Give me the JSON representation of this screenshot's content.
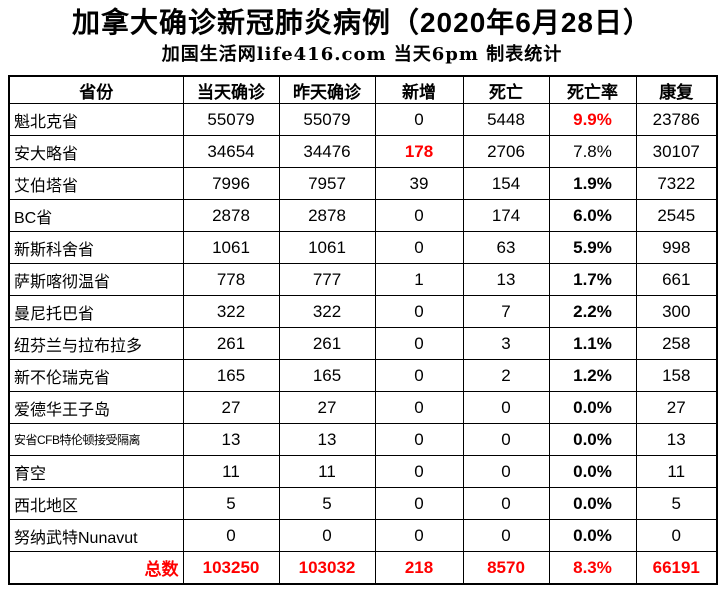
{
  "page": {
    "title": "加拿大确诊新冠肺炎病例（2020年6月28日）",
    "subtitle": "加国生活网life416.com 当天6pm 制表统计"
  },
  "colors": {
    "highlight_red": "#ff0000",
    "text": "#000000",
    "border": "#000000",
    "background": "#ffffff"
  },
  "table": {
    "columns": [
      "省份",
      "当天确诊",
      "昨天确诊",
      "新增",
      "死亡",
      "死亡率",
      "康复"
    ],
    "rows": [
      {
        "province": "魁北克省",
        "today": "55079",
        "yesterday": "55079",
        "added": "0",
        "deaths": "5448",
        "rate": "9.9%",
        "recovered": "23786",
        "rate_style": "red",
        "added_style": "plain",
        "province_small": false
      },
      {
        "province": "安大略省",
        "today": "34654",
        "yesterday": "34476",
        "added": "178",
        "deaths": "2706",
        "rate": "7.8%",
        "recovered": "30107",
        "rate_style": "plain",
        "added_style": "red",
        "province_small": false
      },
      {
        "province": "艾伯塔省",
        "today": "7996",
        "yesterday": "7957",
        "added": "39",
        "deaths": "154",
        "rate": "1.9%",
        "recovered": "7322",
        "rate_style": "bold",
        "added_style": "plain",
        "province_small": false
      },
      {
        "province": "BC省",
        "today": "2878",
        "yesterday": "2878",
        "added": "0",
        "deaths": "174",
        "rate": "6.0%",
        "recovered": "2545",
        "rate_style": "bold",
        "added_style": "plain",
        "province_small": false
      },
      {
        "province": "新斯科舍省",
        "today": "1061",
        "yesterday": "1061",
        "added": "0",
        "deaths": "63",
        "rate": "5.9%",
        "recovered": "998",
        "rate_style": "bold",
        "added_style": "plain",
        "province_small": false
      },
      {
        "province": "萨斯喀彻温省",
        "today": "778",
        "yesterday": "777",
        "added": "1",
        "deaths": "13",
        "rate": "1.7%",
        "recovered": "661",
        "rate_style": "bold",
        "added_style": "plain",
        "province_small": false
      },
      {
        "province": "曼尼托巴省",
        "today": "322",
        "yesterday": "322",
        "added": "0",
        "deaths": "7",
        "rate": "2.2%",
        "recovered": "300",
        "rate_style": "bold",
        "added_style": "plain",
        "province_small": false
      },
      {
        "province": "纽芬兰与拉布拉多",
        "today": "261",
        "yesterday": "261",
        "added": "0",
        "deaths": "3",
        "rate": "1.1%",
        "recovered": "258",
        "rate_style": "bold",
        "added_style": "plain",
        "province_small": false
      },
      {
        "province": "新不伦瑞克省",
        "today": "165",
        "yesterday": "165",
        "added": "0",
        "deaths": "2",
        "rate": "1.2%",
        "recovered": "158",
        "rate_style": "bold",
        "added_style": "plain",
        "province_small": false
      },
      {
        "province": "爱德华王子岛",
        "today": "27",
        "yesterday": "27",
        "added": "0",
        "deaths": "0",
        "rate": "0.0%",
        "recovered": "27",
        "rate_style": "bold",
        "added_style": "plain",
        "province_small": false
      },
      {
        "province": "安省CFB特伦顿接受隔离",
        "today": "13",
        "yesterday": "13",
        "added": "0",
        "deaths": "0",
        "rate": "0.0%",
        "recovered": "13",
        "rate_style": "bold",
        "added_style": "plain",
        "province_small": true
      },
      {
        "province": "育空",
        "today": "11",
        "yesterday": "11",
        "added": "0",
        "deaths": "0",
        "rate": "0.0%",
        "recovered": "11",
        "rate_style": "bold",
        "added_style": "plain",
        "province_small": false
      },
      {
        "province": "西北地区",
        "today": "5",
        "yesterday": "5",
        "added": "0",
        "deaths": "0",
        "rate": "0.0%",
        "recovered": "5",
        "rate_style": "bold",
        "added_style": "plain",
        "province_small": false
      },
      {
        "province": "努纳武特Nunavut",
        "today": "0",
        "yesterday": "0",
        "added": "0",
        "deaths": "0",
        "rate": "0.0%",
        "recovered": "0",
        "rate_style": "bold",
        "added_style": "plain",
        "province_small": false
      }
    ],
    "total": {
      "label": "总数",
      "today": "103250",
      "yesterday": "103032",
      "added": "218",
      "deaths": "8570",
      "rate": "8.3%",
      "recovered": "66191"
    }
  },
  "chart_data": {
    "type": "table",
    "title": "加拿大确诊新冠肺炎病例（2020年6月28日）",
    "subtitle": "加国生活网life416.com 当天6pm 制表统计",
    "columns": [
      "省份",
      "当天确诊",
      "昨天确诊",
      "新增",
      "死亡",
      "死亡率",
      "康复"
    ],
    "rows": [
      [
        "魁北克省",
        55079,
        55079,
        0,
        5448,
        "9.9%",
        23786
      ],
      [
        "安大略省",
        34654,
        34476,
        178,
        2706,
        "7.8%",
        30107
      ],
      [
        "艾伯塔省",
        7996,
        7957,
        39,
        154,
        "1.9%",
        7322
      ],
      [
        "BC省",
        2878,
        2878,
        0,
        174,
        "6.0%",
        2545
      ],
      [
        "新斯科舍省",
        1061,
        1061,
        0,
        63,
        "5.9%",
        998
      ],
      [
        "萨斯喀彻温省",
        778,
        777,
        1,
        13,
        "1.7%",
        661
      ],
      [
        "曼尼托巴省",
        322,
        322,
        0,
        7,
        "2.2%",
        300
      ],
      [
        "纽芬兰与拉布拉多",
        261,
        261,
        0,
        3,
        "1.1%",
        258
      ],
      [
        "新不伦瑞克省",
        165,
        165,
        0,
        2,
        "1.2%",
        158
      ],
      [
        "爱德华王子岛",
        27,
        27,
        0,
        0,
        "0.0%",
        27
      ],
      [
        "安省CFB特伦顿接受隔离",
        13,
        13,
        0,
        0,
        "0.0%",
        13
      ],
      [
        "育空",
        11,
        11,
        0,
        0,
        "0.0%",
        11
      ],
      [
        "西北地区",
        5,
        5,
        0,
        0,
        "0.0%",
        5
      ],
      [
        "努纳武特Nunavut",
        0,
        0,
        0,
        0,
        "0.0%",
        0
      ]
    ],
    "total_row": [
      "总数",
      103250,
      103032,
      218,
      8570,
      "8.3%",
      66191
    ],
    "highlighted_red_cells": [
      "魁北克省 死亡率 9.9%",
      "安大略省 新增 178",
      "总数 row (all values)"
    ]
  }
}
